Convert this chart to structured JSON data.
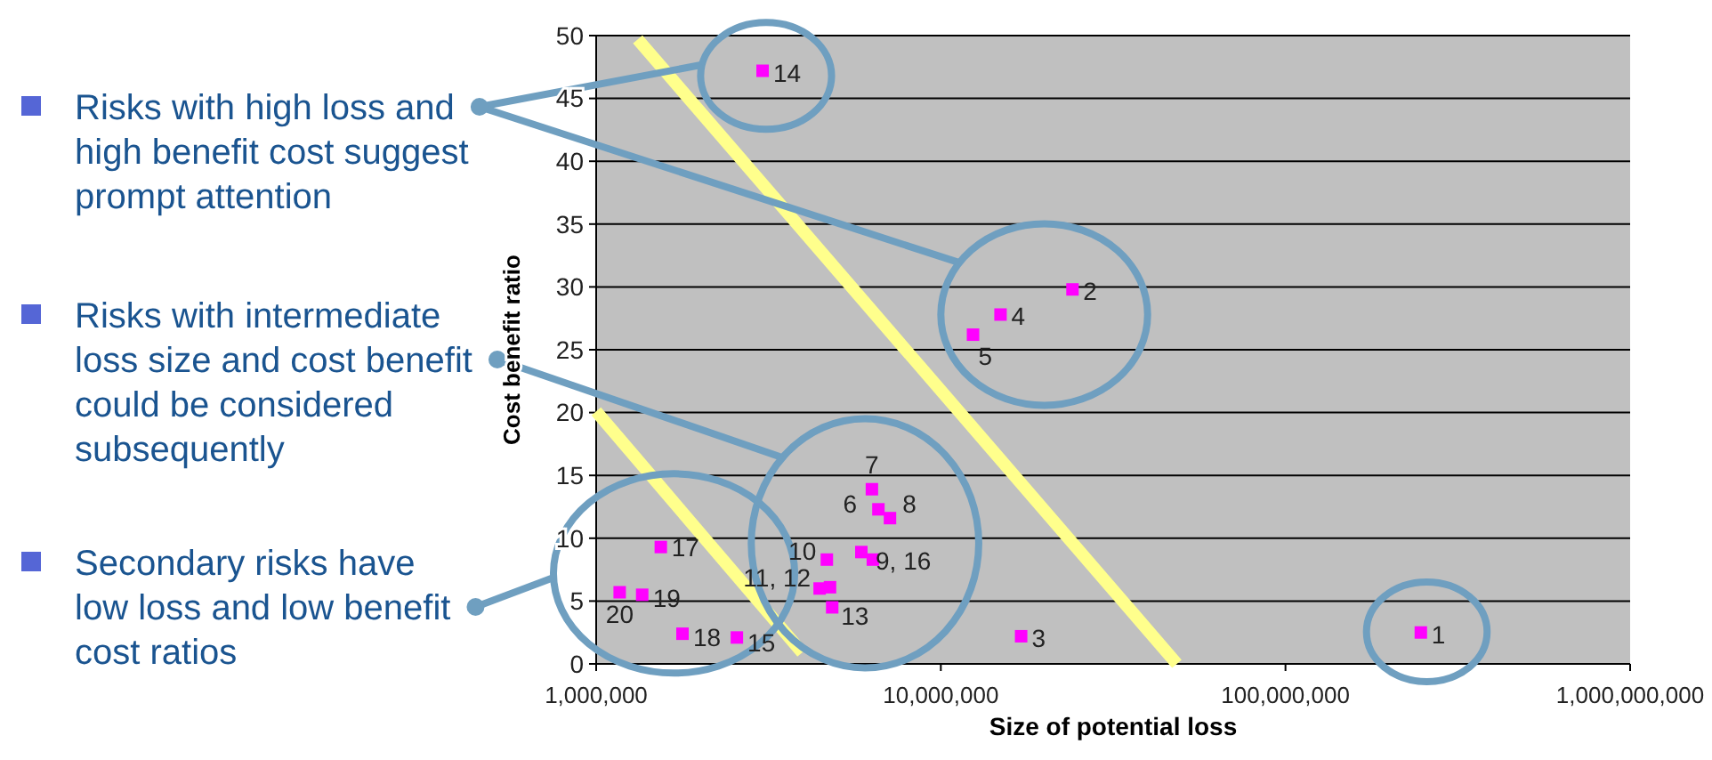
{
  "chart_data": {
    "type": "scatter",
    "xlabel": "Size of potential loss",
    "ylabel": "Cost benefit ratio",
    "log": "x",
    "grid": "y",
    "marker": "square",
    "xlim": [
      1000000,
      1000000000
    ],
    "ylim": [
      0,
      50
    ],
    "xticks": [
      {
        "value": 1000000,
        "label": "1,000,000"
      },
      {
        "value": 10000000,
        "label": "10,000,000"
      },
      {
        "value": 100000000,
        "label": "100,000,000"
      },
      {
        "value": 1000000000,
        "label": "1,000,000,000"
      }
    ],
    "yticks": [
      0,
      5,
      10,
      15,
      20,
      25,
      30,
      35,
      40,
      45,
      50
    ],
    "series": [
      {
        "color": "#ff00ff",
        "x": [
          247000000,
          24100000,
          17100000,
          14900000,
          12400000,
          6590000,
          6310000,
          7120000,
          5880000,
          4670000,
          4450000,
          4770000,
          4840000,
          3040000,
          2560000,
          6350000,
          1540000,
          1780000,
          1360000,
          1170000
        ],
        "values": [
          2.5,
          29.8,
          2.2,
          27.8,
          26.2,
          12.3,
          13.9,
          11.6,
          8.9,
          8.3,
          6.0,
          6.1,
          4.5,
          47.2,
          2.1,
          8.3,
          9.3,
          2.4,
          5.5,
          5.7
        ]
      },
      {
        "type": "line",
        "marker": "none",
        "color": "#ffff8c",
        "x": [
          1320000,
          48400000
        ],
        "values": [
          49.7,
          0
        ]
      },
      {
        "type": "line",
        "marker": "none",
        "color": "#ffff8c",
        "x": [
          1000000,
          3960000
        ],
        "values": [
          20.1,
          0.9
        ]
      }
    ],
    "annotations": [
      "Risks with high loss and high benefit cost suggest prompt attention",
      "Risks with intermediate loss size and cost benefit could be considered subsequently",
      "Secondary risks have low loss and low benefit cost ratios",
      {
        "text": "1",
        "x": 247000000,
        "y": 2.5
      },
      {
        "text": "2",
        "x": 24100000,
        "y": 29.8
      },
      {
        "text": "3",
        "x": 17100000,
        "y": 2.2
      },
      {
        "text": "4",
        "x": 14900000,
        "y": 27.8
      },
      {
        "text": "5",
        "x": 12400000,
        "y": 26.2
      },
      {
        "text": "6",
        "x": 6590000,
        "y": 12.3
      },
      {
        "text": "7",
        "x": 6310000,
        "y": 13.9
      },
      {
        "text": "8",
        "x": 7120000,
        "y": 11.6
      },
      {
        "text": "9, 16",
        "x": 5880000,
        "y": 8.9
      },
      {
        "text": "10",
        "x": 4670000,
        "y": 8.3
      },
      {
        "text": "11, 12",
        "x": 4450000,
        "y": 6.0
      },
      {
        "text": "13",
        "x": 4840000,
        "y": 4.5
      },
      {
        "text": "14",
        "x": 3040000,
        "y": 47.2
      },
      {
        "text": "15",
        "x": 2560000,
        "y": 2.1
      },
      {
        "text": "17",
        "x": 1540000,
        "y": 9.3
      },
      {
        "text": "18",
        "x": 1780000,
        "y": 2.4
      },
      {
        "text": "19",
        "x": 1360000,
        "y": 5.5
      },
      {
        "text": "20",
        "x": 1170000,
        "y": 5.7
      }
    ]
  }
}
